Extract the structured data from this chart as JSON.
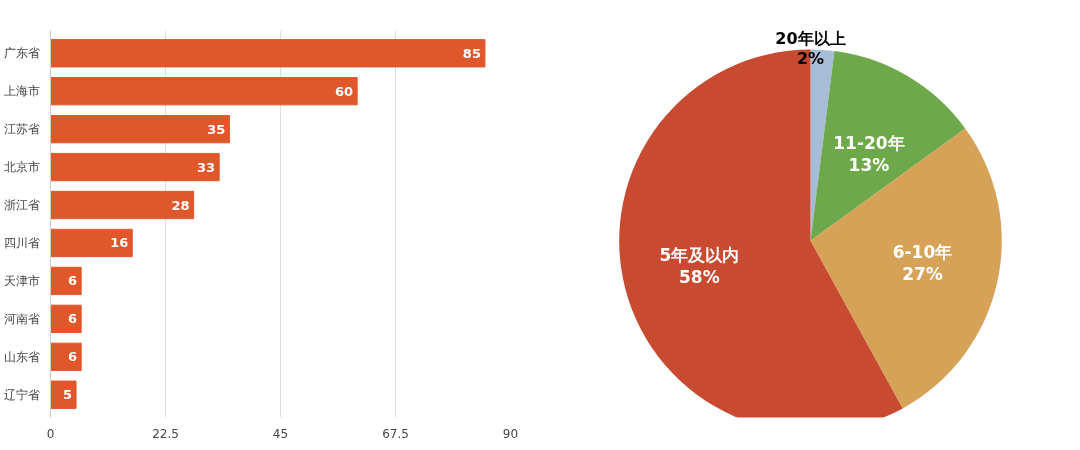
{
  "chart_data": [
    {
      "type": "bar",
      "orientation": "horizontal",
      "categories": [
        "广东省",
        "上海市",
        "江苏省",
        "北京市",
        "浙江省",
        "四川省",
        "天津市",
        "河南省",
        "山东省",
        "辽宁省"
      ],
      "values": [
        85,
        60,
        35,
        33,
        28,
        16,
        6,
        6,
        6,
        5
      ],
      "color": "#e0572b",
      "xlim": [
        0,
        90
      ],
      "xticks": [
        0,
        {
          "value": 22.5,
          "label": "22.5"
        },
        45,
        {
          "value": 67.5,
          "label": "67.5"
        },
        90
      ],
      "grid": "x",
      "data_labels": true
    },
    {
      "type": "pie",
      "categories": [
        "20年以上",
        "11-20年",
        "6-10年",
        "5年及以内"
      ],
      "values": [
        2,
        13,
        27,
        58
      ],
      "value_labels": [
        "2%",
        "13%",
        "27%",
        "58%"
      ],
      "colors": [
        "#a7bcd6",
        "#6da84a",
        "#d5a257",
        "#c84a30"
      ]
    }
  ]
}
